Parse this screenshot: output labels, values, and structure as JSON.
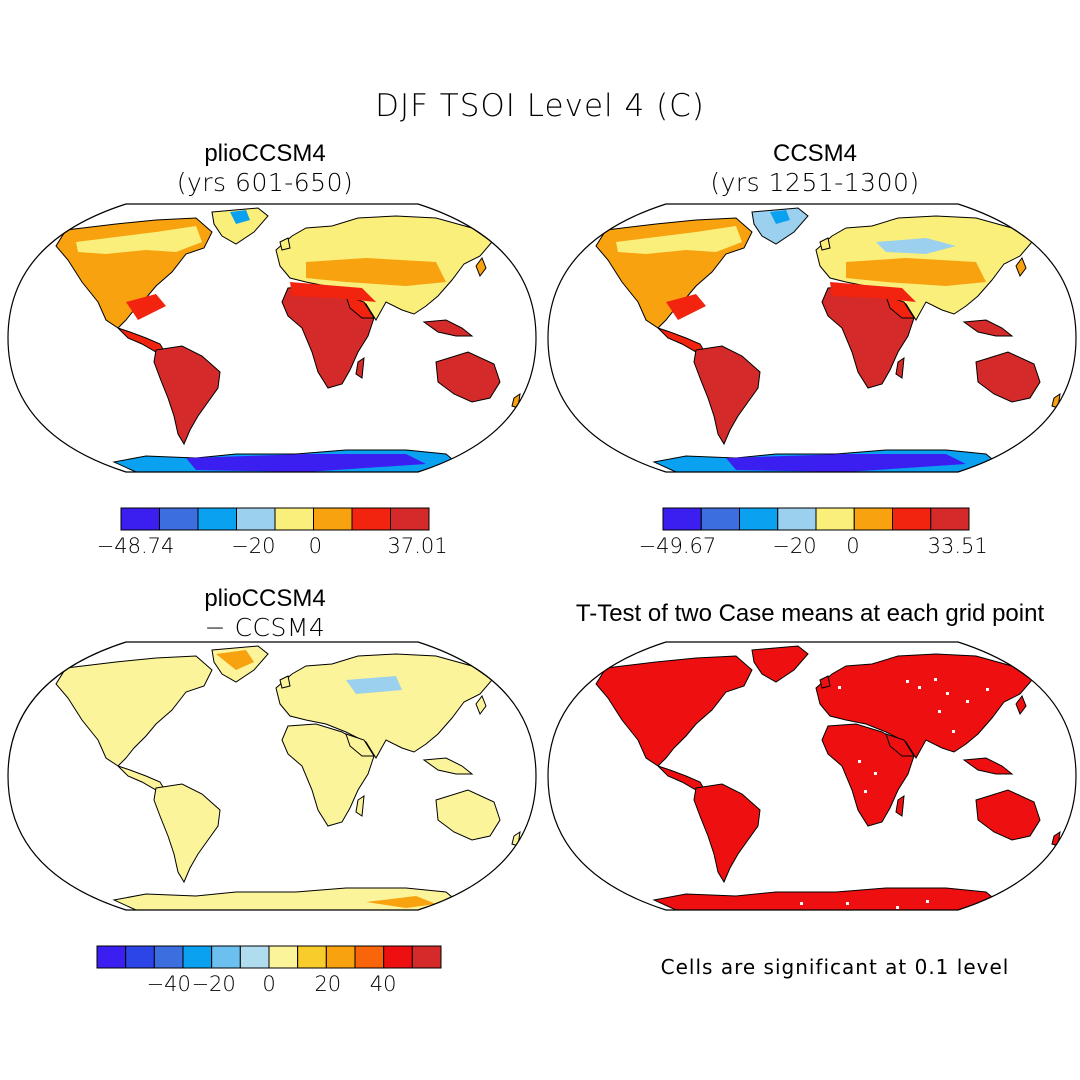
{
  "figure": {
    "title": "DJF TSOI Level 4 (C)"
  },
  "panels": {
    "top_left": {
      "title": "plioCCSM4",
      "subtitle": "(yrs 601-650)",
      "colorbar": {
        "min_label": "−48.74",
        "mid_label": "−20",
        "zero_label": "0",
        "max_label": "37.01",
        "colors": [
          "#3a1ff0",
          "#3d6ee0",
          "#0aa2f0",
          "#9bd0ee",
          "#fbef7b",
          "#f8a20f",
          "#f3240f",
          "#d42a2a"
        ]
      }
    },
    "top_right": {
      "title": "CCSM4",
      "subtitle": "(yrs 1251-1300)",
      "colorbar": {
        "min_label": "−49.67",
        "mid_label": "−20",
        "zero_label": "0",
        "max_label": "33.51",
        "colors": [
          "#3a1ff0",
          "#3d6ee0",
          "#0aa2f0",
          "#9bd0ee",
          "#fbef7b",
          "#f8a20f",
          "#f3240f",
          "#d42a2a"
        ]
      }
    },
    "bottom_left": {
      "title": "plioCCSM4",
      "subtitle": "− CCSM4",
      "colorbar": {
        "labels": [
          "−40",
          "−20",
          "0",
          "20",
          "40"
        ],
        "colors": [
          "#3a1ff0",
          "#2b45e6",
          "#3d6ee0",
          "#0aa2f0",
          "#6cc0f0",
          "#b0dcf0",
          "#fbf49b",
          "#f8cc2a",
          "#f8a20f",
          "#f8650a",
          "#ee1010",
          "#d42a2a"
        ]
      }
    },
    "bottom_right": {
      "title": "T-Test of two Case means at each grid point",
      "note": "Cells are significant at 0.1 level"
    }
  },
  "map_colors": {
    "ocean": "#ffffff",
    "outline": "#000000",
    "hot": "#d42a2a",
    "warm": "#f3240f",
    "orange": "#f8a20f",
    "yellow": "#fbef7b",
    "lightblue": "#9bd0ee",
    "blue": "#0aa2f0",
    "darkblue": "#3a1ff0",
    "diff_yellow": "#fbf49b",
    "ttest_red": "#ee1010"
  }
}
